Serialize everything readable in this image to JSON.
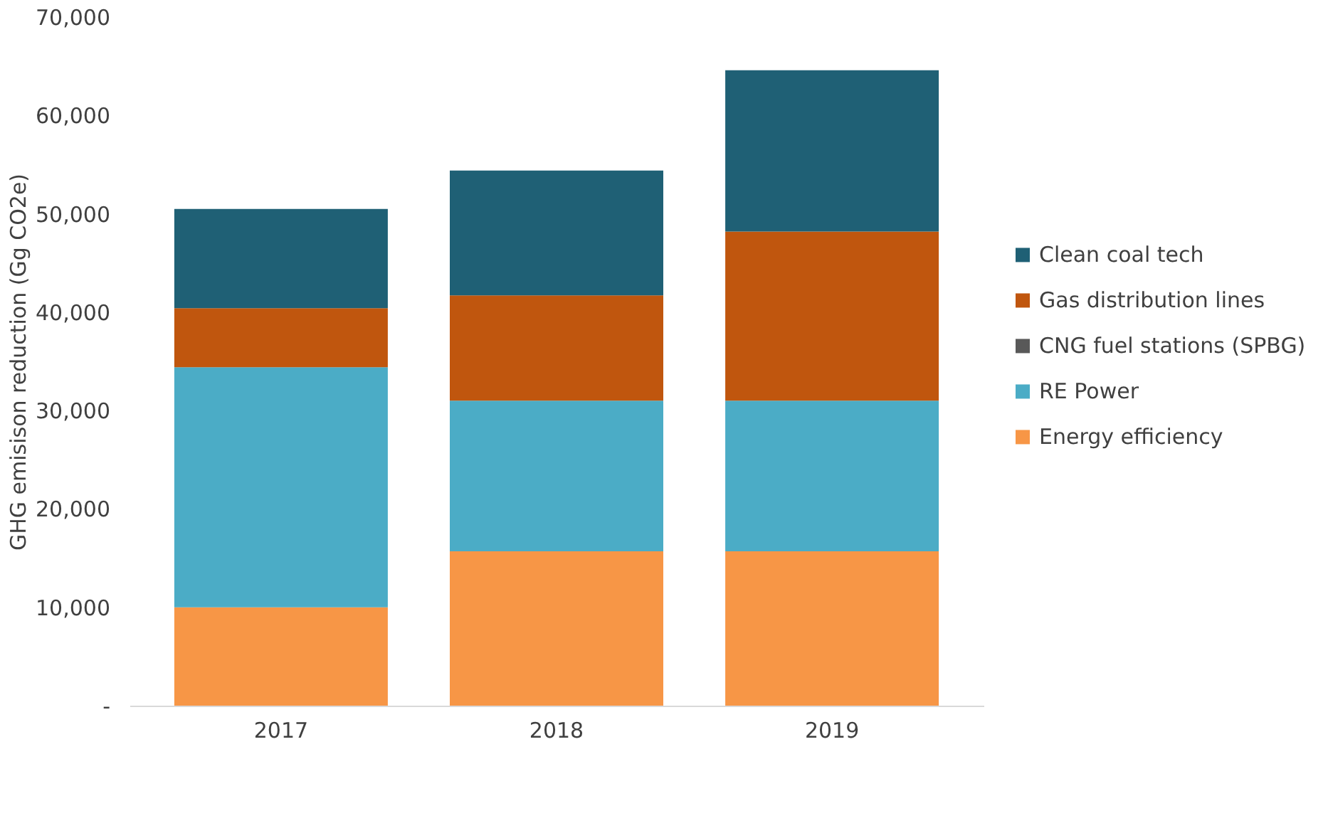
{
  "chart_data": {
    "type": "bar",
    "stacked": true,
    "ylabel": "GHG emisison reduction (Gg CO2e)",
    "categories": [
      "2017",
      "2018",
      "2019"
    ],
    "series": [
      {
        "name": "Energy efficiency",
        "color": "#f79646",
        "values": [
          10000,
          15700,
          15700
        ]
      },
      {
        "name": "RE Power",
        "color": "#4bacc6",
        "values": [
          24400,
          15300,
          15300
        ]
      },
      {
        "name": "CNG fuel stations (SPBG)",
        "color": "#595959",
        "values": [
          0,
          0,
          0
        ]
      },
      {
        "name": "Gas distribution lines",
        "color": "#c0560e",
        "values": [
          6000,
          10700,
          17200
        ]
      },
      {
        "name": "Clean coal tech",
        "color": "#1f6075",
        "values": [
          10100,
          12700,
          16400
        ]
      }
    ],
    "ylim": [
      0,
      70000
    ],
    "yticks": [
      {
        "value": 0,
        "label": "-"
      },
      {
        "value": 10000,
        "label": "10,000"
      },
      {
        "value": 20000,
        "label": "20,000"
      },
      {
        "value": 30000,
        "label": "30,000"
      },
      {
        "value": 40000,
        "label": "40,000"
      },
      {
        "value": 50000,
        "label": "50,000"
      },
      {
        "value": 60000,
        "label": "60,000"
      },
      {
        "value": 70000,
        "label": "70,000"
      }
    ],
    "grid": false,
    "legend": "right"
  }
}
